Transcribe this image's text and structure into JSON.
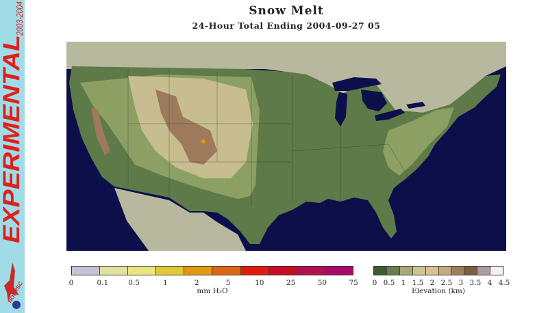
{
  "sidebar": {
    "label_experimental": "EXPERIMENTAL",
    "label_years": "2003-2004",
    "logo_text": "NOHRSC"
  },
  "map": {
    "title": "Snow Melt",
    "subtitle": "24-Hour Total Ending 2004-09-27 05"
  },
  "legend_melt": {
    "unit": "mm H₂O",
    "colors": [
      "#c4c4d6",
      "#e2e2a0",
      "#e8e680",
      "#e0c838",
      "#e09a10",
      "#e06418",
      "#e01c0c",
      "#c80c28",
      "#b0104c",
      "#a80868"
    ],
    "ticks": [
      "0",
      "0.1",
      "0.5",
      "1",
      "2",
      "5",
      "10",
      "25",
      "50",
      "75"
    ]
  },
  "legend_elev": {
    "unit": "Elevation (km)",
    "colors": [
      "#3e5c33",
      "#6c7d4c",
      "#a9a878",
      "#cdc596",
      "#d6c191",
      "#c5ab7e",
      "#a0805c",
      "#7c5e42",
      "#b09aa8",
      "#f2f2f2"
    ],
    "ticks": [
      "0",
      "0.5",
      "1",
      "1.5",
      "2",
      "2.5",
      "3",
      "3.5",
      "4",
      "4.5"
    ]
  },
  "colors": {
    "ocean": "#0c0f4a",
    "neighbor_land": "#b8b89e",
    "lowland": "#5e7a48",
    "midland": "#8ca064",
    "upland": "#c8bd90",
    "mountain": "#9e7a5c",
    "melt_spot": "#e09a10"
  }
}
